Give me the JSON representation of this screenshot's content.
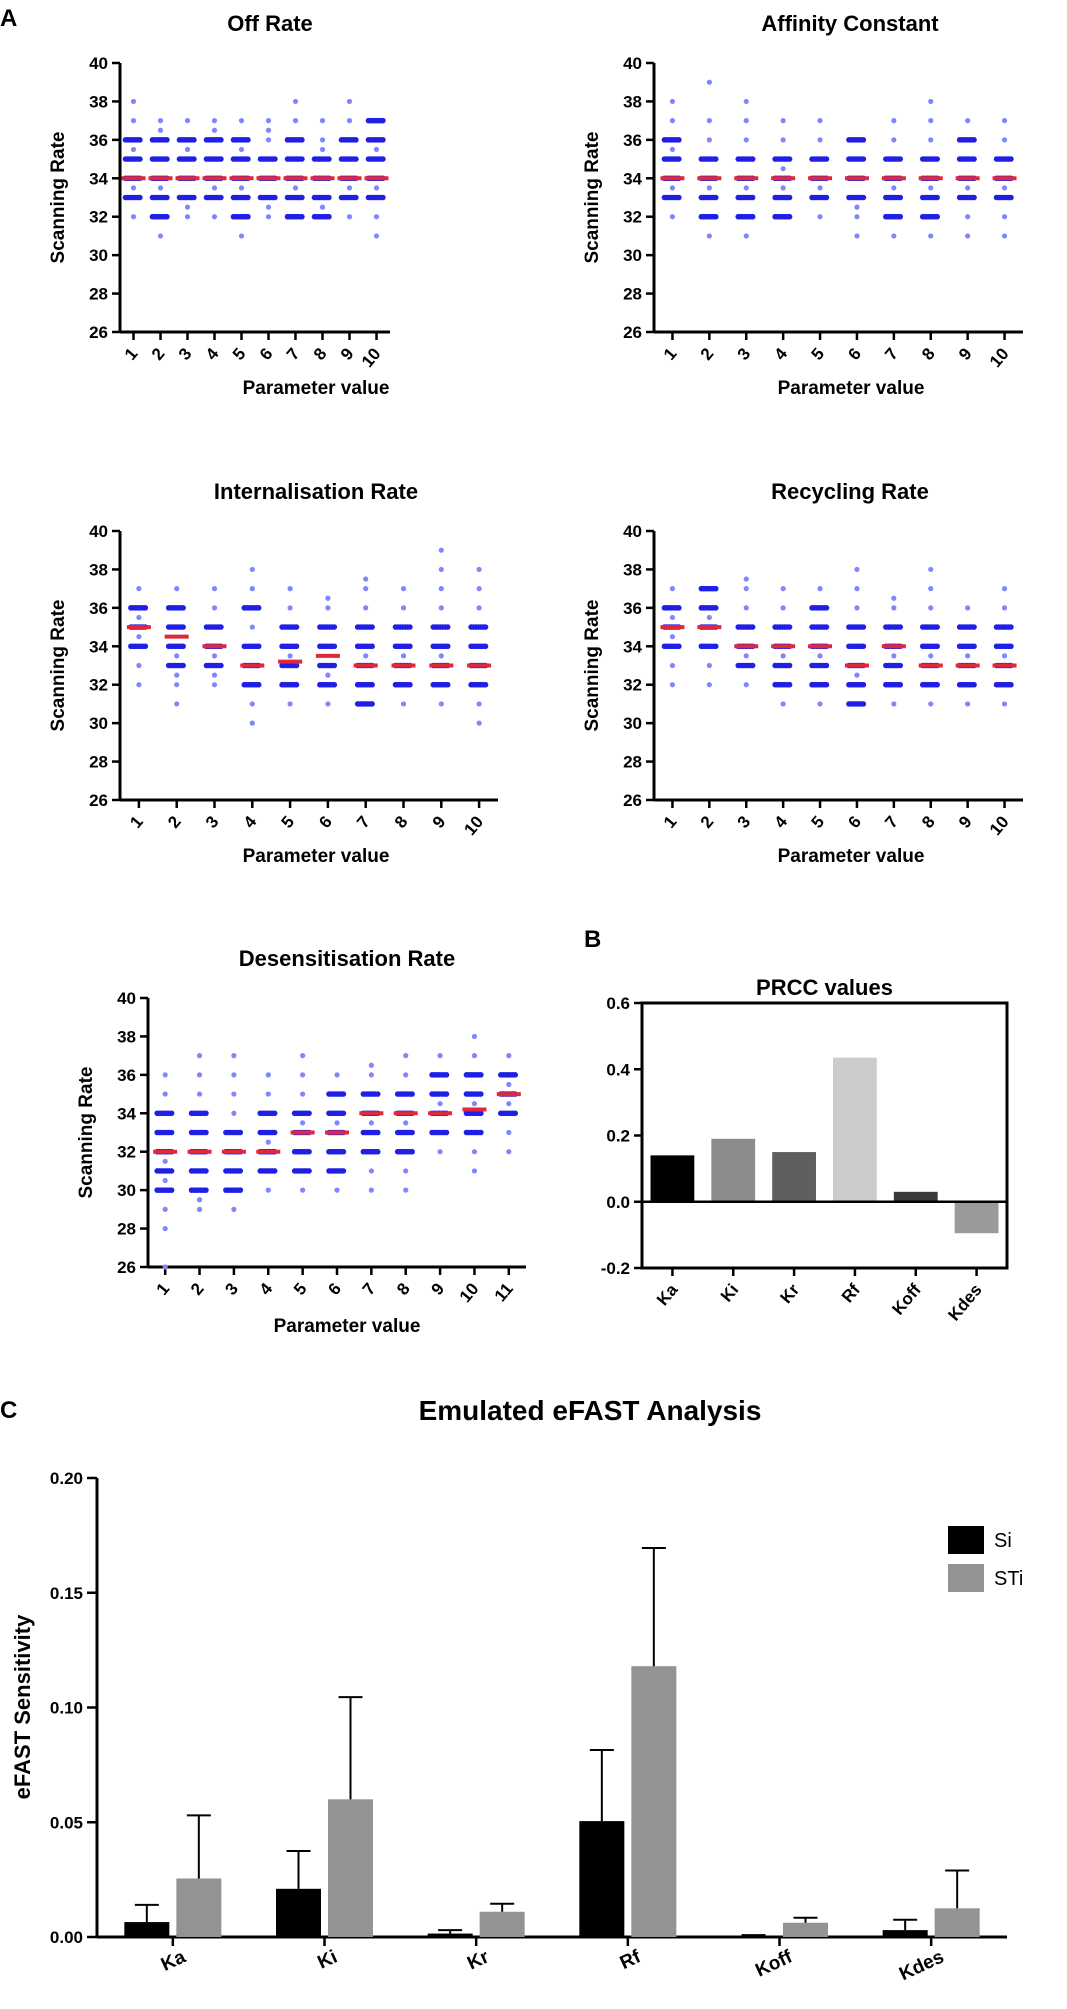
{
  "panel_labels": {
    "a": "A",
    "b": "B",
    "c": "C"
  },
  "chart_data": [
    {
      "id": "off_rate",
      "type": "scatter",
      "title": "Off Rate",
      "xlabel": "Parameter value",
      "ylabel": "Scanning Rate",
      "ylim": [
        26,
        40
      ],
      "yticks": [
        "26",
        "28",
        "30",
        "32",
        "34",
        "36",
        "38",
        "40"
      ],
      "categories": [
        "1",
        "2",
        "3",
        "4",
        "5",
        "6",
        "7",
        "8",
        "9",
        "10"
      ],
      "medians": [
        34,
        34,
        34,
        34,
        34,
        34,
        34,
        34,
        34,
        34
      ],
      "columns": [
        {
          "dense": [
            33,
            34,
            35,
            36
          ],
          "sparse": [
            32,
            38,
            37,
            33.5,
            35.5
          ]
        },
        {
          "dense": [
            32,
            33,
            34,
            35,
            36
          ],
          "sparse": [
            31,
            37,
            36.5,
            33.5
          ]
        },
        {
          "dense": [
            33,
            34,
            35,
            36
          ],
          "sparse": [
            32,
            37,
            32.5,
            35.5
          ]
        },
        {
          "dense": [
            33,
            34,
            35,
            36
          ],
          "sparse": [
            32,
            37,
            36.5,
            33.5
          ]
        },
        {
          "dense": [
            32,
            33,
            34,
            35,
            36
          ],
          "sparse": [
            31,
            37,
            35.5,
            33.5
          ]
        },
        {
          "dense": [
            33,
            34,
            35
          ],
          "sparse": [
            32,
            37,
            36,
            36.5,
            32.5
          ]
        },
        {
          "dense": [
            32,
            33,
            34,
            35,
            36
          ],
          "sparse": [
            38,
            37,
            33.5
          ]
        },
        {
          "dense": [
            32,
            33,
            34,
            35
          ],
          "sparse": [
            36,
            37,
            32.5,
            35.5
          ]
        },
        {
          "dense": [
            33,
            34,
            35,
            36
          ],
          "sparse": [
            32,
            38,
            37,
            33.5
          ]
        },
        {
          "dense": [
            33,
            34,
            35,
            36,
            37
          ],
          "sparse": [
            32,
            31,
            35.5,
            33.5
          ]
        }
      ]
    },
    {
      "id": "affinity",
      "type": "scatter",
      "title": "Affinity Constant",
      "xlabel": "Parameter value",
      "ylabel": "Scanning Rate",
      "ylim": [
        26,
        40
      ],
      "yticks": [
        "26",
        "28",
        "30",
        "32",
        "34",
        "36",
        "38",
        "40"
      ],
      "categories": [
        "1",
        "2",
        "3",
        "4",
        "5",
        "6",
        "7",
        "8",
        "9",
        "10"
      ],
      "medians": [
        34,
        34,
        34,
        34,
        34,
        34,
        34,
        34,
        34,
        34
      ],
      "columns": [
        {
          "dense": [
            33,
            34,
            35,
            36
          ],
          "sparse": [
            32,
            38,
            37,
            33.5,
            35.5
          ]
        },
        {
          "dense": [
            32,
            33,
            34,
            35
          ],
          "sparse": [
            31,
            39,
            36,
            37,
            33.5
          ]
        },
        {
          "dense": [
            32,
            33,
            34,
            35
          ],
          "sparse": [
            31,
            38,
            36,
            37,
            33.5
          ]
        },
        {
          "dense": [
            32,
            33,
            34,
            35
          ],
          "sparse": [
            36,
            37,
            33.5,
            34.5
          ]
        },
        {
          "dense": [
            33,
            34,
            35
          ],
          "sparse": [
            32,
            36,
            37,
            33.5
          ]
        },
        {
          "dense": [
            33,
            34,
            35,
            36
          ],
          "sparse": [
            32,
            31,
            32.5
          ]
        },
        {
          "dense": [
            32,
            33,
            34,
            35
          ],
          "sparse": [
            31,
            36,
            37,
            33.5
          ]
        },
        {
          "dense": [
            32,
            33,
            34,
            35
          ],
          "sparse": [
            31,
            38,
            36,
            37,
            33.5
          ]
        },
        {
          "dense": [
            33,
            34,
            35,
            36
          ],
          "sparse": [
            32,
            31,
            37,
            33.5
          ]
        },
        {
          "dense": [
            33,
            34,
            35
          ],
          "sparse": [
            32,
            31,
            36,
            37,
            33.5
          ]
        }
      ]
    },
    {
      "id": "internalisation",
      "type": "scatter",
      "title": "Internalisation Rate",
      "xlabel": "Parameter value",
      "ylabel": "Scanning Rate",
      "ylim": [
        26,
        40
      ],
      "yticks": [
        "26",
        "28",
        "30",
        "32",
        "34",
        "36",
        "38",
        "40"
      ],
      "categories": [
        "1",
        "2",
        "3",
        "4",
        "5",
        "6",
        "7",
        "8",
        "9",
        "10"
      ],
      "medians": [
        35,
        34.5,
        34,
        33,
        33.2,
        33.5,
        33,
        33,
        33,
        33
      ],
      "columns": [
        {
          "dense": [
            34,
            35,
            36
          ],
          "sparse": [
            33,
            37,
            32,
            34.5,
            35.5
          ]
        },
        {
          "dense": [
            33,
            34,
            35,
            36
          ],
          "sparse": [
            32,
            31,
            37,
            33.5,
            32.5
          ]
        },
        {
          "dense": [
            33,
            34,
            35
          ],
          "sparse": [
            32,
            36,
            37,
            32.5,
            33.5
          ]
        },
        {
          "dense": [
            32,
            33,
            34,
            36
          ],
          "sparse": [
            31,
            30,
            38,
            37,
            35
          ]
        },
        {
          "dense": [
            32,
            33,
            34,
            35
          ],
          "sparse": [
            31,
            36,
            37,
            33.5
          ]
        },
        {
          "dense": [
            32,
            33,
            34,
            35
          ],
          "sparse": [
            31,
            36,
            36.5,
            32.5
          ]
        },
        {
          "dense": [
            31,
            32,
            33,
            34,
            35
          ],
          "sparse": [
            36,
            37,
            37.5,
            33.5
          ]
        },
        {
          "dense": [
            32,
            33,
            34,
            35
          ],
          "sparse": [
            31,
            36,
            37,
            33.5
          ]
        },
        {
          "dense": [
            32,
            33,
            34,
            35
          ],
          "sparse": [
            31,
            36,
            37,
            38,
            39,
            33.5
          ]
        },
        {
          "dense": [
            32,
            33,
            34,
            35
          ],
          "sparse": [
            31,
            30,
            36,
            37,
            38
          ]
        }
      ]
    },
    {
      "id": "recycling",
      "type": "scatter",
      "title": "Recycling Rate",
      "xlabel": "Parameter value",
      "ylabel": "Scanning Rate",
      "ylim": [
        26,
        40
      ],
      "yticks": [
        "26",
        "28",
        "30",
        "32",
        "34",
        "36",
        "38",
        "40"
      ],
      "categories": [
        "1",
        "2",
        "3",
        "4",
        "5",
        "6",
        "7",
        "8",
        "9",
        "10"
      ],
      "medians": [
        35,
        35,
        34,
        34,
        34,
        33,
        34,
        33,
        33,
        33
      ],
      "columns": [
        {
          "dense": [
            34,
            35,
            36
          ],
          "sparse": [
            33,
            37,
            32,
            34.5,
            35.5
          ]
        },
        {
          "dense": [
            34,
            35,
            36,
            37
          ],
          "sparse": [
            33,
            32,
            35.5
          ]
        },
        {
          "dense": [
            33,
            34,
            35
          ],
          "sparse": [
            32,
            36,
            37,
            37.5,
            33.5
          ]
        },
        {
          "dense": [
            32,
            33,
            34,
            35
          ],
          "sparse": [
            31,
            36,
            37,
            33.5
          ]
        },
        {
          "dense": [
            32,
            33,
            34,
            35,
            36
          ],
          "sparse": [
            31,
            37,
            33.5
          ]
        },
        {
          "dense": [
            31,
            32,
            33,
            34,
            35
          ],
          "sparse": [
            36,
            37,
            38,
            32.5
          ]
        },
        {
          "dense": [
            32,
            33,
            34,
            35
          ],
          "sparse": [
            31,
            36,
            36.5,
            33.5
          ]
        },
        {
          "dense": [
            32,
            33,
            34,
            35
          ],
          "sparse": [
            31,
            36,
            37,
            38,
            33.5
          ]
        },
        {
          "dense": [
            32,
            33,
            34,
            35
          ],
          "sparse": [
            31,
            36,
            33.5
          ]
        },
        {
          "dense": [
            32,
            33,
            34,
            35
          ],
          "sparse": [
            31,
            36,
            37,
            33.5
          ]
        }
      ]
    },
    {
      "id": "desensitisation",
      "type": "scatter",
      "title": "Desensitisation Rate",
      "xlabel": "Parameter value",
      "ylabel": "Scanning Rate",
      "ylim": [
        26,
        40
      ],
      "yticks": [
        "26",
        "28",
        "30",
        "32",
        "34",
        "36",
        "38",
        "40"
      ],
      "categories": [
        "1",
        "2",
        "3",
        "4",
        "5",
        "6",
        "7",
        "8",
        "9",
        "10",
        "11"
      ],
      "medians": [
        32,
        32,
        32,
        32,
        33,
        33,
        34,
        34,
        34,
        34.2,
        35
      ],
      "columns": [
        {
          "dense": [
            30,
            31,
            32,
            33,
            34
          ],
          "sparse": [
            29,
            28,
            26,
            35,
            36,
            30.5,
            31.5
          ]
        },
        {
          "dense": [
            30,
            31,
            32,
            33,
            34
          ],
          "sparse": [
            29,
            29.5,
            35,
            36,
            37
          ]
        },
        {
          "dense": [
            30,
            31,
            32,
            33
          ],
          "sparse": [
            29,
            34,
            35,
            36,
            37
          ]
        },
        {
          "dense": [
            31,
            32,
            33,
            34
          ],
          "sparse": [
            30,
            35,
            36,
            32.5
          ]
        },
        {
          "dense": [
            31,
            32,
            33,
            34
          ],
          "sparse": [
            30,
            35,
            36,
            37,
            33.5
          ]
        },
        {
          "dense": [
            31,
            32,
            33,
            34,
            35
          ],
          "sparse": [
            30,
            36,
            33.5
          ]
        },
        {
          "dense": [
            32,
            33,
            34,
            35
          ],
          "sparse": [
            31,
            30,
            36,
            36.5,
            33.5
          ]
        },
        {
          "dense": [
            32,
            33,
            34,
            35
          ],
          "sparse": [
            31,
            30,
            36,
            37,
            33.5
          ]
        },
        {
          "dense": [
            33,
            34,
            35,
            36
          ],
          "sparse": [
            32,
            37,
            34.5
          ]
        },
        {
          "dense": [
            33,
            34,
            35,
            36
          ],
          "sparse": [
            32,
            31,
            37,
            38,
            34.5
          ]
        },
        {
          "dense": [
            34,
            35,
            36
          ],
          "sparse": [
            33,
            32,
            37,
            34.5,
            35.5
          ]
        }
      ]
    },
    {
      "id": "prcc",
      "type": "bar",
      "title": "PRCC values",
      "ylim": [
        -0.2,
        0.6
      ],
      "yticks": [
        "-0.2",
        "0.0",
        "0.2",
        "0.4",
        "0.6"
      ],
      "categories": [
        "Ka",
        "Ki",
        "Kr",
        "Rf",
        "Koff",
        "Kdes"
      ],
      "values": [
        0.14,
        0.19,
        0.15,
        0.435,
        0.03,
        -0.095
      ],
      "colors": [
        "#000000",
        "#8c8c8c",
        "#5f5f5f",
        "#cccccc",
        "#3a3a3a",
        "#9a9a9a"
      ]
    },
    {
      "id": "efast",
      "type": "bar",
      "title": "Emulated eFAST Analysis",
      "xlabel": "",
      "ylabel": "eFAST Sensitivity",
      "ylim": [
        0,
        0.2
      ],
      "yticks": [
        "0.00",
        "0.05",
        "0.10",
        "0.15",
        "0.20"
      ],
      "categories": [
        "Ka",
        "Ki",
        "Kr",
        "Rf",
        "Koff",
        "Kdes"
      ],
      "series": [
        {
          "name": "Si",
          "color": "#000000",
          "values": [
            0.0065,
            0.021,
            0.0015,
            0.0505,
            0.0005,
            0.003
          ],
          "errors": [
            0.0075,
            0.0165,
            0.0015,
            0.031,
            0.0003,
            0.0045
          ]
        },
        {
          "name": "STi",
          "color": "#939393",
          "values": [
            0.0255,
            0.06,
            0.011,
            0.118,
            0.0062,
            0.0125
          ],
          "errors": [
            0.0275,
            0.0445,
            0.0035,
            0.0515,
            0.0022,
            0.0165
          ]
        }
      ],
      "legend": [
        "Si",
        "STi"
      ],
      "legend_position": "top-right"
    }
  ]
}
